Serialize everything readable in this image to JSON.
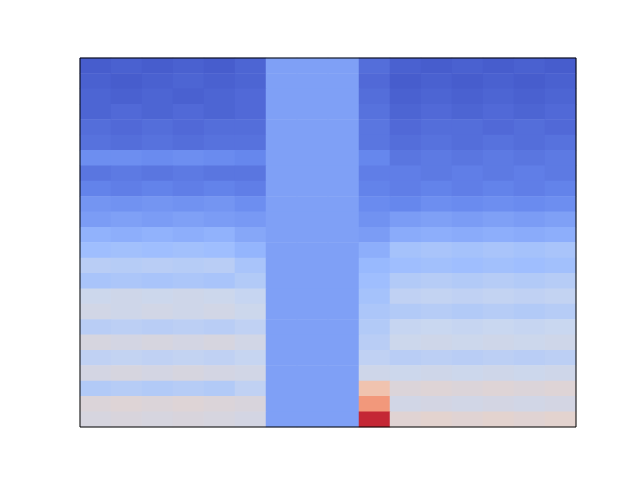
{
  "chart_data": {
    "type": "heatmap",
    "tick_labels": false,
    "color_range": [
      0,
      1
    ],
    "cells": [
      [
        0.04,
        0.05,
        0.04,
        0.05,
        0.04,
        0.06,
        0.21,
        0.21,
        0.21,
        0.08,
        0.05,
        0.04,
        0.05,
        0.04,
        0.05,
        0.04
      ],
      [
        0.05,
        0.04,
        0.05,
        0.06,
        0.05,
        0.06,
        0.21,
        0.21,
        0.21,
        0.07,
        0.04,
        0.05,
        0.04,
        0.05,
        0.04,
        0.05
      ],
      [
        0.06,
        0.05,
        0.06,
        0.05,
        0.06,
        0.07,
        0.21,
        0.21,
        0.21,
        0.08,
        0.05,
        0.06,
        0.05,
        0.06,
        0.05,
        0.06
      ],
      [
        0.06,
        0.07,
        0.06,
        0.07,
        0.06,
        0.07,
        0.21,
        0.21,
        0.21,
        0.09,
        0.06,
        0.07,
        0.06,
        0.07,
        0.06,
        0.07
      ],
      [
        0.08,
        0.07,
        0.08,
        0.07,
        0.08,
        0.08,
        0.21,
        0.21,
        0.21,
        0.1,
        0.07,
        0.08,
        0.08,
        0.07,
        0.08,
        0.07
      ],
      [
        0.09,
        0.08,
        0.09,
        0.08,
        0.09,
        0.09,
        0.21,
        0.21,
        0.21,
        0.1,
        0.08,
        0.09,
        0.08,
        0.09,
        0.08,
        0.09
      ],
      [
        0.16,
        0.16,
        0.15,
        0.16,
        0.15,
        0.14,
        0.21,
        0.21,
        0.21,
        0.14,
        0.1,
        0.11,
        0.1,
        0.11,
        0.1,
        0.11
      ],
      [
        0.1,
        0.11,
        0.1,
        0.11,
        0.1,
        0.1,
        0.21,
        0.21,
        0.21,
        0.12,
        0.12,
        0.11,
        0.12,
        0.11,
        0.12,
        0.11
      ],
      [
        0.13,
        0.12,
        0.13,
        0.12,
        0.13,
        0.12,
        0.21,
        0.21,
        0.21,
        0.13,
        0.12,
        0.13,
        0.12,
        0.13,
        0.12,
        0.13
      ],
      [
        0.18,
        0.17,
        0.18,
        0.17,
        0.18,
        0.16,
        0.21,
        0.21,
        0.21,
        0.15,
        0.14,
        0.16,
        0.15,
        0.16,
        0.15,
        0.16
      ],
      [
        0.2,
        0.21,
        0.2,
        0.21,
        0.2,
        0.19,
        0.21,
        0.21,
        0.21,
        0.17,
        0.2,
        0.21,
        0.2,
        0.21,
        0.2,
        0.21
      ],
      [
        0.26,
        0.25,
        0.26,
        0.25,
        0.26,
        0.23,
        0.21,
        0.21,
        0.21,
        0.2,
        0.24,
        0.25,
        0.24,
        0.25,
        0.24,
        0.25
      ],
      [
        0.3,
        0.31,
        0.3,
        0.31,
        0.3,
        0.27,
        0.21,
        0.21,
        0.21,
        0.25,
        0.32,
        0.33,
        0.32,
        0.33,
        0.32,
        0.33
      ],
      [
        0.38,
        0.37,
        0.38,
        0.37,
        0.38,
        0.33,
        0.21,
        0.21,
        0.21,
        0.28,
        0.3,
        0.31,
        0.3,
        0.31,
        0.3,
        0.31
      ],
      [
        0.33,
        0.34,
        0.33,
        0.34,
        0.33,
        0.36,
        0.21,
        0.21,
        0.21,
        0.3,
        0.36,
        0.37,
        0.36,
        0.37,
        0.36,
        0.37
      ],
      [
        0.44,
        0.45,
        0.44,
        0.45,
        0.44,
        0.42,
        0.21,
        0.21,
        0.21,
        0.32,
        0.4,
        0.41,
        0.4,
        0.41,
        0.4,
        0.41
      ],
      [
        0.46,
        0.45,
        0.46,
        0.45,
        0.46,
        0.44,
        0.21,
        0.21,
        0.21,
        0.34,
        0.36,
        0.37,
        0.36,
        0.37,
        0.36,
        0.37
      ],
      [
        0.38,
        0.39,
        0.38,
        0.39,
        0.38,
        0.4,
        0.21,
        0.21,
        0.21,
        0.36,
        0.42,
        0.43,
        0.42,
        0.43,
        0.42,
        0.43
      ],
      [
        0.48,
        0.47,
        0.48,
        0.47,
        0.48,
        0.46,
        0.21,
        0.21,
        0.21,
        0.38,
        0.44,
        0.45,
        0.44,
        0.45,
        0.44,
        0.45
      ],
      [
        0.4,
        0.41,
        0.4,
        0.41,
        0.4,
        0.42,
        0.21,
        0.21,
        0.21,
        0.4,
        0.38,
        0.39,
        0.38,
        0.39,
        0.38,
        0.39
      ],
      [
        0.47,
        0.48,
        0.47,
        0.48,
        0.47,
        0.46,
        0.21,
        0.21,
        0.21,
        0.45,
        0.44,
        0.45,
        0.44,
        0.45,
        0.44,
        0.45
      ],
      [
        0.36,
        0.37,
        0.36,
        0.37,
        0.36,
        0.4,
        0.21,
        0.21,
        0.21,
        0.62,
        0.5,
        0.51,
        0.5,
        0.51,
        0.5,
        0.51
      ],
      [
        0.5,
        0.51,
        0.5,
        0.51,
        0.5,
        0.49,
        0.21,
        0.21,
        0.21,
        0.75,
        0.46,
        0.47,
        0.46,
        0.47,
        0.46,
        0.47
      ],
      [
        0.48,
        0.49,
        0.48,
        0.49,
        0.48,
        0.47,
        0.21,
        0.21,
        0.21,
        0.95,
        0.52,
        0.53,
        0.52,
        0.53,
        0.52,
        0.53
      ]
    ]
  }
}
